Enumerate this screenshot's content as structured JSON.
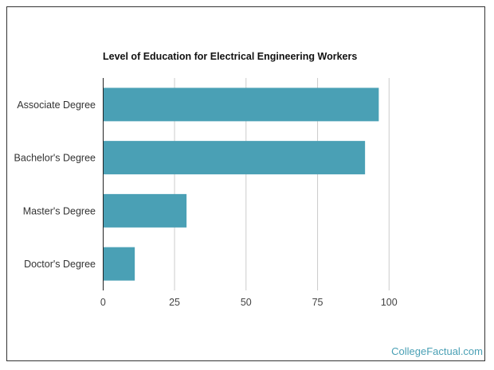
{
  "chart_data": {
    "type": "bar",
    "orientation": "horizontal",
    "title": "Level of Education for Electrical Engineering Workers",
    "categories": [
      "Associate Degree",
      "Bachelor's Degree",
      "Master's Degree",
      "Doctor's Degree"
    ],
    "values": [
      96.4,
      91.6,
      29.2,
      11.1
    ],
    "xlim": [
      0,
      100
    ],
    "xticks": [
      0,
      25,
      50,
      75,
      100
    ],
    "grid": true,
    "bar_color": "#4aa0b5",
    "xlabel": "",
    "ylabel": ""
  },
  "brand": "CollegeFactual.com"
}
